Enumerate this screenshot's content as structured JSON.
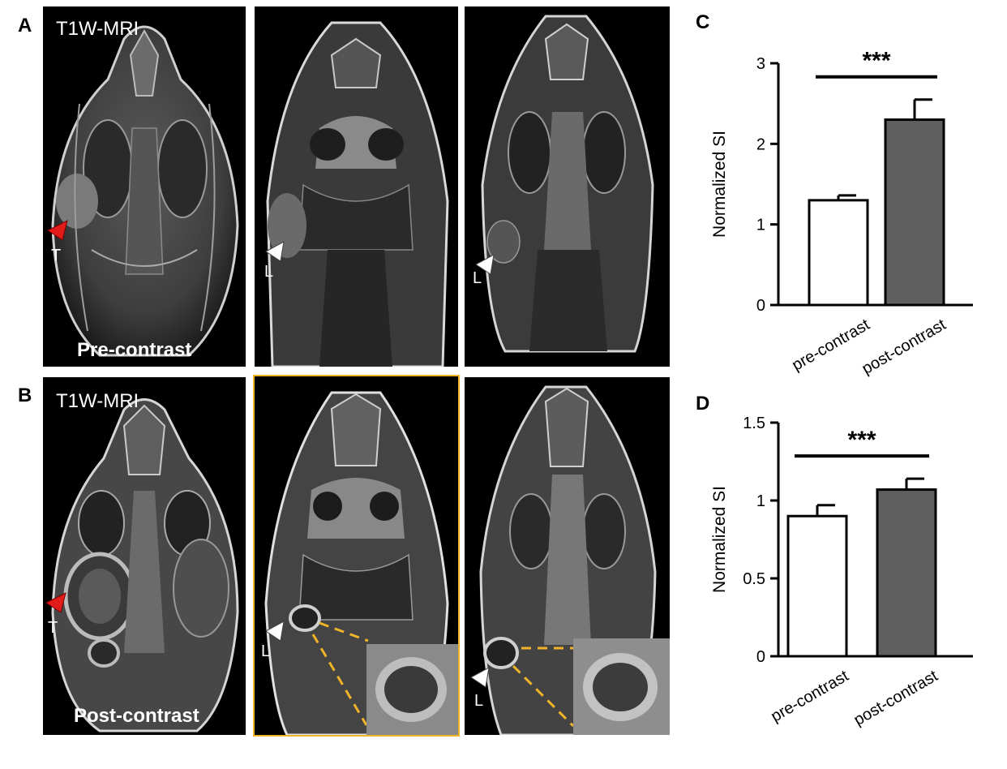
{
  "panels": {
    "A": {
      "letter": "A",
      "title": "T1W-MRI",
      "caption": "Pre-contrast",
      "markers": {
        "tumor": "T",
        "lymph1": "L",
        "lymph2": "L"
      }
    },
    "B": {
      "letter": "B",
      "title": "T1W-MRI",
      "caption": "Post-contrast",
      "markers": {
        "tumor": "T",
        "lymph1": "L",
        "lymph2": "L"
      }
    }
  },
  "colors": {
    "tumor_marker": "#e21b1b",
    "lymph_marker": "#ffffff",
    "highlight_frame": "#f0b429",
    "bar_pre": "#ffffff",
    "bar_post": "#5f5f5f"
  },
  "chart_data": [
    {
      "type": "bar",
      "panel": "C",
      "categories": [
        "pre-contrast",
        "post-contrast"
      ],
      "values": [
        1.3,
        2.3
      ],
      "errors": [
        0.06,
        0.25
      ],
      "ylabel": "Normalized SI",
      "ylim": [
        0,
        3
      ],
      "yticks": [
        0,
        1,
        2,
        3
      ],
      "ytick_labels": [
        "0",
        "1",
        "2",
        "3"
      ],
      "significance": "***",
      "grid": false
    },
    {
      "type": "bar",
      "panel": "D",
      "categories": [
        "pre-contrast",
        "post-contrast"
      ],
      "values": [
        0.9,
        1.07
      ],
      "errors": [
        0.07,
        0.07
      ],
      "ylabel": "Normalized SI",
      "ylim": [
        0,
        1.5
      ],
      "yticks": [
        0,
        0.5,
        1,
        1.5
      ],
      "ytick_labels": [
        "0",
        "0.5",
        "1",
        "1.5"
      ],
      "significance": "***",
      "grid": false
    }
  ],
  "chart_letters": {
    "C": "C",
    "D": "D"
  }
}
